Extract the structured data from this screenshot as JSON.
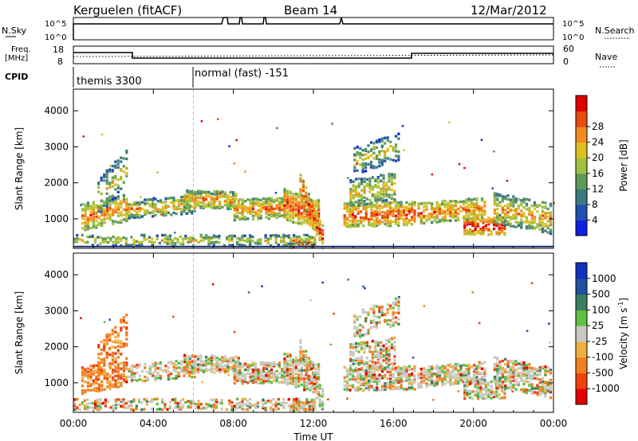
{
  "header": {
    "station": "Kerguelen (fitACF)",
    "beam": "Beam 14",
    "date": "12/Mar/2012"
  },
  "top_panels": {
    "nsky_label": "N.Sky",
    "nsky_ticks": [
      "10^5",
      "10^0"
    ],
    "nsearch_label": "N.Search",
    "nsearch_ticks": [
      "10^5",
      "10^0"
    ],
    "freq_label_1": "Freq.",
    "freq_label_2": "[MHz]",
    "freq_ticks": [
      "18",
      "8"
    ],
    "nave_label": "Nave",
    "nave_ticks": [
      "60",
      "0"
    ],
    "cpid_label": "CPID",
    "cpid_segments": [
      {
        "label": "themis 3300",
        "start_hour": 0
      },
      {
        "label": "normal (fast) -151",
        "start_hour": 6
      }
    ]
  },
  "chart_data": [
    {
      "type": "heatmap",
      "title": "",
      "xlabel": "Time UT",
      "ylabel": "Slant Range [km]",
      "xlim": [
        0,
        24
      ],
      "ylim": [
        180,
        4600
      ],
      "x_ticks": [
        "00:00",
        "04:00",
        "08:00",
        "12:00",
        "16:00",
        "20:00",
        "00:00"
      ],
      "y_ticks": [
        1000,
        2000,
        3000,
        4000
      ],
      "colorbar": {
        "label": "Power [dB]",
        "ticks": [
          "4",
          "8",
          "12",
          "16",
          "20",
          "24",
          "28"
        ],
        "colors": [
          "#1020e0",
          "#2050b0",
          "#3a7a80",
          "#5f9a5a",
          "#a0c040",
          "#e0c020",
          "#f08a20",
          "#e84a10",
          "#e00000"
        ]
      }
    },
    {
      "type": "heatmap",
      "title": "",
      "xlabel": "Time UT",
      "ylabel": "Slant Range [km]",
      "xlim": [
        0,
        24
      ],
      "ylim": [
        180,
        4600
      ],
      "x_ticks": [
        "00:00",
        "04:00",
        "08:00",
        "12:00",
        "16:00",
        "20:00",
        "00:00"
      ],
      "y_ticks": [
        1000,
        2000,
        3000,
        4000
      ],
      "colorbar": {
        "label": "Velocity [m s",
        "label_sup": "-1",
        "label_end": "]",
        "ticks": [
          "1000",
          "500",
          "100",
          "25",
          "-25",
          "-100",
          "-500",
          "-1000"
        ],
        "colors": [
          "#1030c0",
          "#2050a0",
          "#3a8060",
          "#5cc040",
          "#c8c8c0",
          "#f0b040",
          "#f08020",
          "#f04010",
          "#e00000"
        ]
      }
    }
  ]
}
